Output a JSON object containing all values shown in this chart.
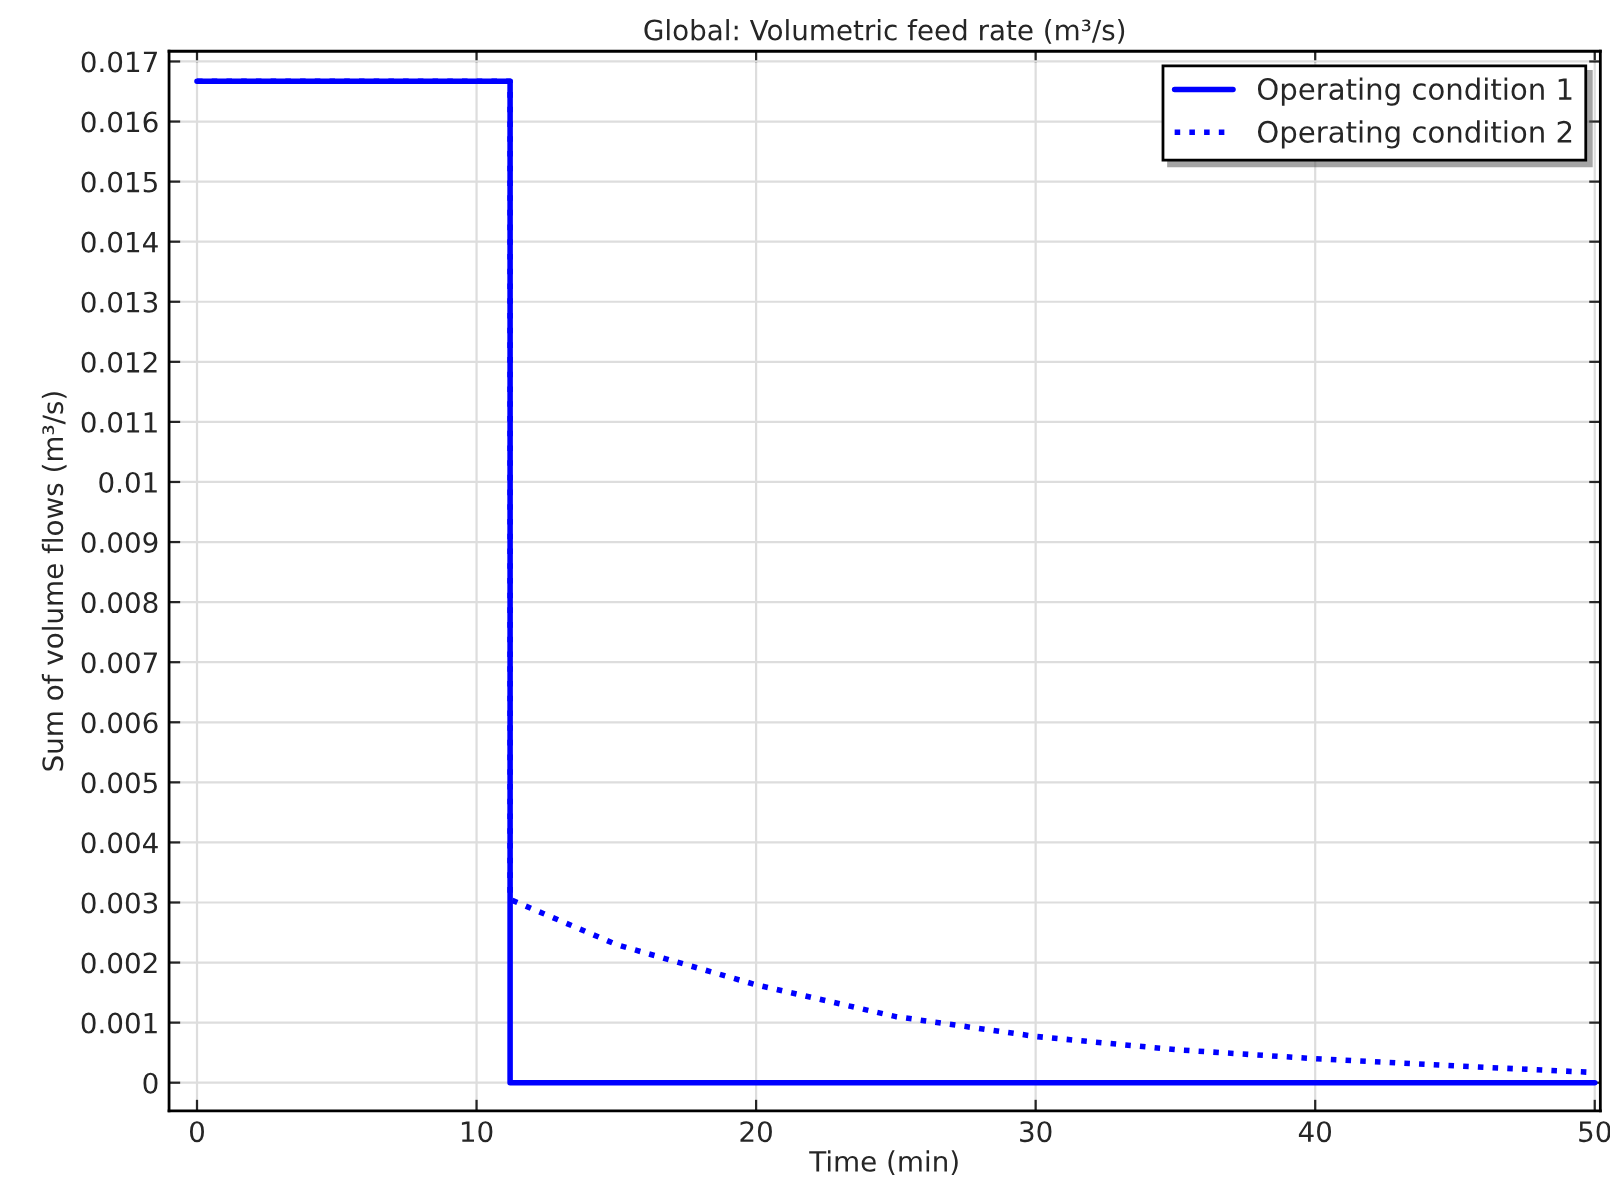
{
  "chart_data": {
    "type": "line",
    "title": "Global: Volumetric feed rate (m³/s)",
    "xlabel": "Time (min)",
    "ylabel": "Sum of volume flows (m³/s)",
    "xlim": [
      -1,
      50.2
    ],
    "ylim": [
      -0.00047,
      0.01717
    ],
    "xticks": [
      0,
      10,
      20,
      30,
      40,
      50
    ],
    "yticks": [
      0,
      0.001,
      0.002,
      0.003,
      0.004,
      0.005,
      0.006,
      0.007,
      0.008,
      0.009,
      0.01,
      0.011,
      0.012,
      0.013,
      0.014,
      0.015,
      0.016,
      0.017
    ],
    "grid": true,
    "legend": "top right",
    "series": [
      {
        "name": "Operating condition 1",
        "color": "#0000ff",
        "line_style": "solid",
        "x": [
          0,
          11.2,
          11.2,
          50
        ],
        "values": [
          0.01667,
          0.01667,
          0,
          0
        ]
      },
      {
        "name": "Operating condition 2",
        "color": "#0000ff",
        "line_style": "dotted",
        "x": [
          0,
          11.2,
          11.2,
          15,
          20,
          25,
          30,
          35,
          40,
          45,
          50
        ],
        "values": [
          0.01667,
          0.01667,
          0.00305,
          0.0023,
          0.00163,
          0.0011,
          0.00077,
          0.00055,
          0.0004,
          0.00028,
          0.00017
        ]
      }
    ]
  }
}
